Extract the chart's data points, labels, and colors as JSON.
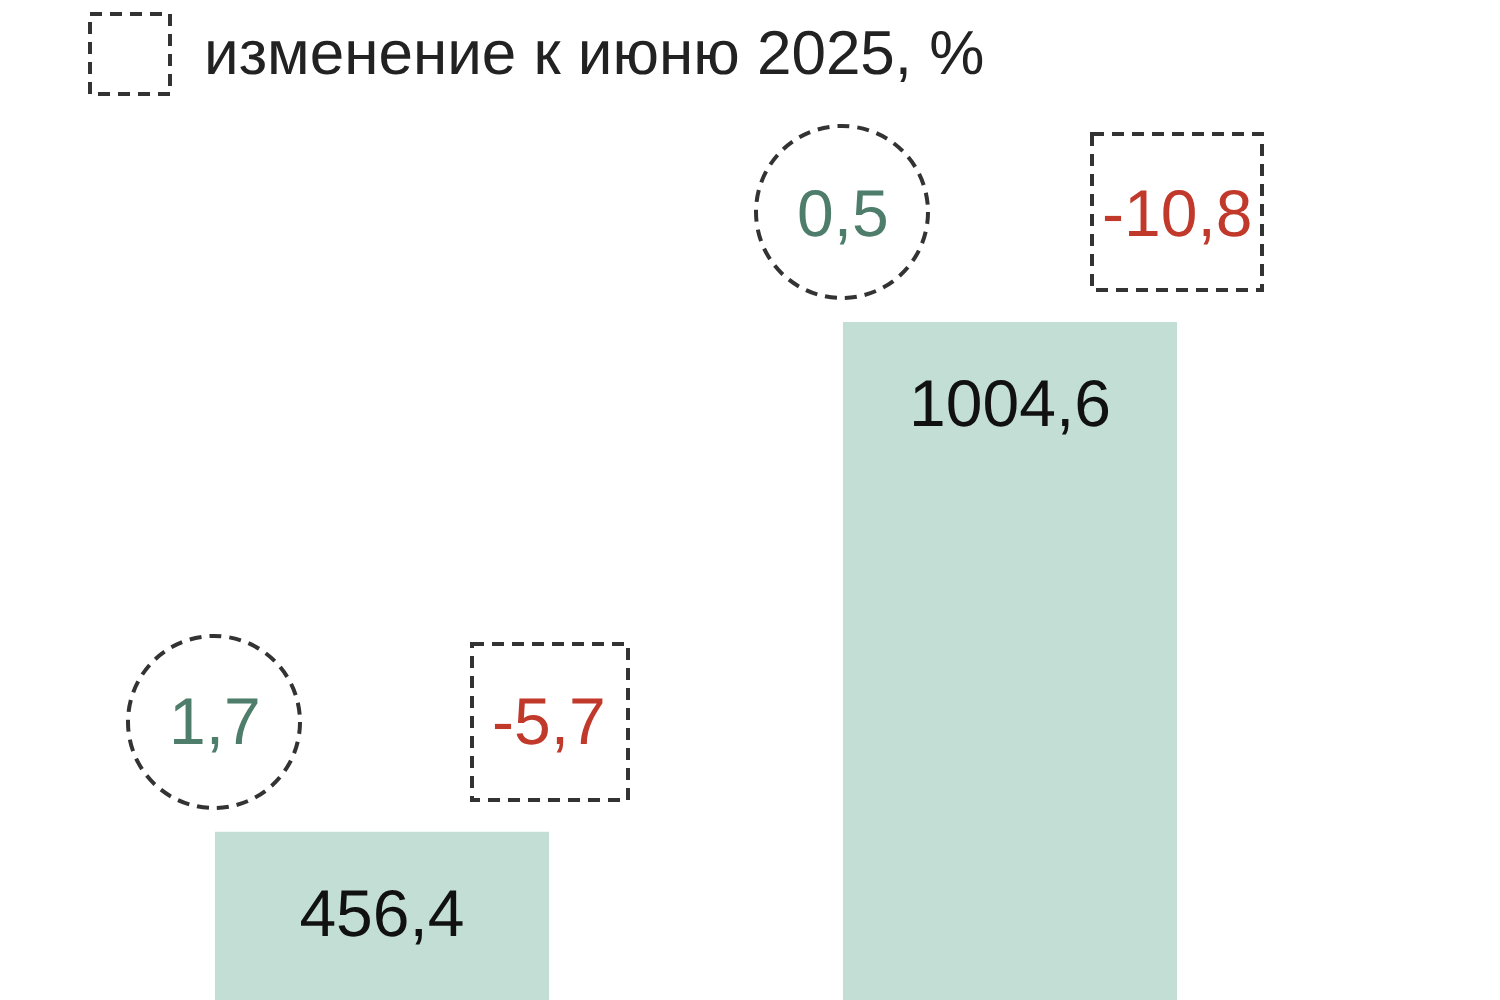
{
  "chart_data": {
    "type": "bar",
    "categories": [
      null,
      null
    ],
    "values": [
      456.4,
      1004.6
    ],
    "color": "#c3ded5",
    "value_labels": [
      "456,4",
      "1004,6"
    ],
    "tick_labels": false,
    "annotations": [
      "изменение к июню 2025, %",
      "1,7",
      "-5,7",
      "0,5",
      "-10,8"
    ]
  }
}
